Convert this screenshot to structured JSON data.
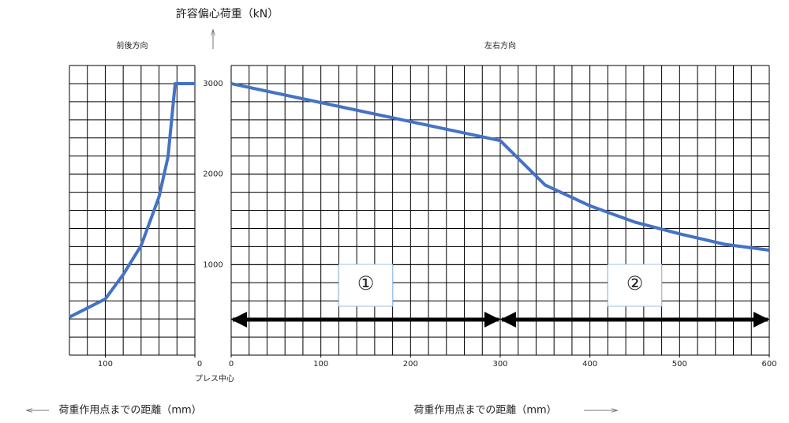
{
  "chart_data": [
    {
      "type": "line",
      "title": "前後方向",
      "ylabel": "許容偏心荷重（kN）",
      "xlabel": "荷重作用点までの距離（mm）",
      "annotation": "プレス中心",
      "x": [
        140,
        100,
        80,
        60,
        40,
        30,
        22,
        0
      ],
      "series": [
        {
          "color": "#4472c4",
          "values": [
            420,
            620,
            890,
            1210,
            1750,
            2190,
            3000,
            3000
          ]
        }
      ],
      "xlim": [
        140,
        0
      ],
      "xticks": [
        100,
        0
      ],
      "ylim": [
        0,
        3200
      ],
      "yticks": [
        1000,
        2000,
        3000
      ],
      "grid": true,
      "grid_step_x": 20,
      "grid_step_y": 200
    },
    {
      "type": "line",
      "title": "左右方向",
      "xlabel": "荷重作用点までの距離（mm）",
      "x": [
        0,
        300,
        350,
        400,
        450,
        500,
        550,
        600
      ],
      "series": [
        {
          "color": "#4472c4",
          "values": [
            3000,
            2370,
            1880,
            1650,
            1470,
            1340,
            1225,
            1160
          ]
        }
      ],
      "xlim": [
        0,
        600
      ],
      "xticks": [
        0,
        100,
        200,
        300,
        400,
        500,
        600
      ],
      "ylim": [
        0,
        3200
      ],
      "yticks": [
        1000,
        2000,
        3000
      ],
      "grid": true,
      "grid_step_x": 20,
      "grid_step_y": 200,
      "ranges": [
        {
          "label": "①",
          "from": 0,
          "to": 300
        },
        {
          "label": "②",
          "from": 300,
          "to": 600
        }
      ]
    }
  ]
}
